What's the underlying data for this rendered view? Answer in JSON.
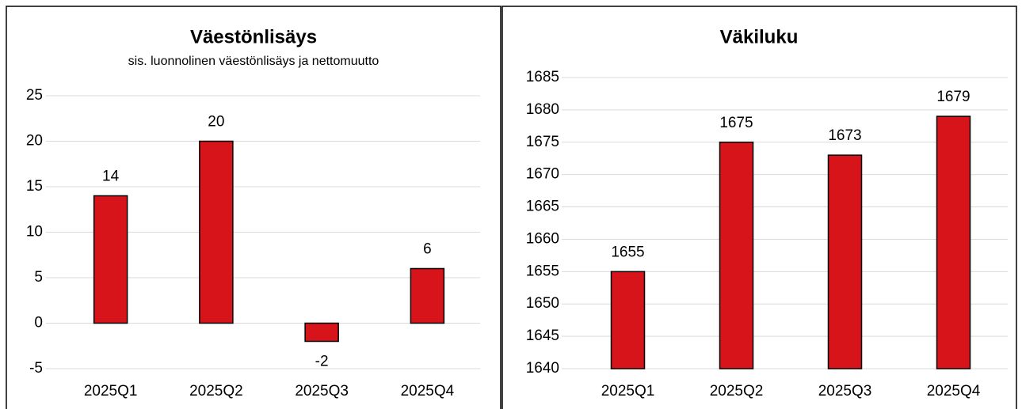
{
  "chart_data": [
    {
      "type": "bar",
      "title": "Väestönlisäys",
      "subtitle": "sis. luonnolinen väestönlisäys ja nettomuutto",
      "categories": [
        "2025Q1",
        "2025Q2",
        "2025Q3",
        "2025Q4"
      ],
      "values": [
        14,
        20,
        -2,
        6
      ],
      "color": "#d7141a",
      "ylim": [
        -5,
        25
      ],
      "yticks": [
        -5,
        0,
        5,
        10,
        15,
        20,
        25
      ],
      "grid": true
    },
    {
      "type": "bar",
      "title": "Väkiluku",
      "categories": [
        "2025Q1",
        "2025Q2",
        "2025Q3",
        "2025Q4"
      ],
      "values": [
        1655,
        1675,
        1673,
        1679
      ],
      "color": "#d7141a",
      "ylim": [
        1640,
        1685
      ],
      "yticks": [
        1640,
        1645,
        1650,
        1655,
        1660,
        1665,
        1670,
        1675,
        1680,
        1685
      ],
      "grid": true
    }
  ]
}
